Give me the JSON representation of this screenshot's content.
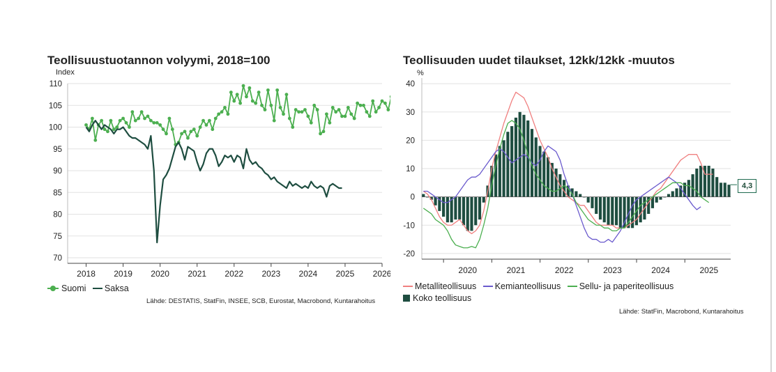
{
  "left": {
    "title": "Teollisuustuotannon volyymi, 2018=100",
    "y_unit": "Index",
    "legend": [
      {
        "label": "Suomi",
        "color": "#4caf50"
      },
      {
        "label": "Saksa",
        "color": "#1e4d40"
      }
    ],
    "source": "Lähde: DESTATIS, StatFin, INSEE, SCB, Eurostat, Macrobond, Kuntarahoitus"
  },
  "right": {
    "title": "Teollisuuden uudet tilaukset, 12kk/12kk -muutos",
    "y_unit": "%",
    "callout": "4,3",
    "legend": [
      {
        "label": "Metalliteollisuus",
        "color": "#f08080",
        "kind": "line"
      },
      {
        "label": "Kemianteollisuus",
        "color": "#6a5acd",
        "kind": "line"
      },
      {
        "label": "Sellu- ja paperiteollisuus",
        "color": "#4caf50",
        "kind": "line"
      },
      {
        "label": "Koko teollisuus",
        "color": "#1e4d40",
        "kind": "bar"
      }
    ],
    "source": "Lähde: StatFin, Macrobond, Kuntarahoitus"
  },
  "chart_data": [
    {
      "type": "line",
      "title": "Teollisuustuotannon volyymi, 2018=100",
      "ylabel": "Index",
      "ylim": [
        70,
        110
      ],
      "yticks": [
        70,
        75,
        80,
        85,
        90,
        95,
        100,
        105,
        110
      ],
      "xlim": [
        2017.5,
        2026
      ],
      "xticks": [
        "2018",
        "2019",
        "2020",
        "2021",
        "2022",
        "2023",
        "2024",
        "2025",
        "2026"
      ],
      "grid": true,
      "legend_position": "bottom-left",
      "series": [
        {
          "name": "Suomi",
          "color": "#4caf50",
          "markers": true,
          "start": 2018.0,
          "step": 0.08333,
          "values": [
            100.5,
            99.5,
            102.0,
            97.0,
            100.5,
            101.5,
            99.5,
            99.0,
            101.5,
            99.5,
            100.0,
            101.5,
            102.0,
            101.0,
            100.0,
            103.5,
            101.5,
            102.0,
            103.5,
            102.0,
            102.5,
            101.5,
            101.0,
            101.0,
            100.5,
            99.5,
            98.5,
            102.0,
            99.5,
            96.0,
            96.5,
            98.5,
            99.0,
            97.5,
            99.0,
            99.5,
            98.0,
            100.0,
            101.5,
            100.5,
            101.5,
            99.5,
            102.0,
            103.0,
            103.5,
            104.5,
            103.0,
            108.0,
            106.0,
            107.5,
            105.5,
            109.5,
            107.0,
            109.0,
            106.0,
            105.5,
            108.0,
            105.0,
            104.0,
            108.5,
            105.0,
            101.5,
            108.5,
            104.5,
            103.0,
            107.5,
            102.0,
            100.0,
            104.0,
            103.5,
            103.5,
            104.0,
            102.5,
            101.0,
            105.0,
            104.0,
            98.5,
            99.0,
            103.0,
            101.0,
            104.5,
            103.5,
            104.0,
            102.5,
            102.5,
            104.5,
            103.0,
            102.0,
            105.5,
            105.0,
            105.0,
            103.5,
            102.5,
            106.0,
            103.5,
            104.5,
            106.0,
            105.5,
            104.0,
            107.0
          ]
        },
        {
          "name": "Saksa",
          "color": "#1e4d40",
          "markers": false,
          "start": 2018.0,
          "step": 0.08333,
          "values": [
            100.0,
            99.0,
            100.5,
            101.5,
            100.5,
            99.5,
            100.5,
            100.0,
            99.5,
            98.5,
            99.5,
            99.5,
            100.0,
            99.0,
            98.0,
            97.5,
            97.5,
            97.0,
            96.5,
            96.0,
            95.0,
            98.0,
            90.0,
            73.5,
            82.0,
            88.0,
            89.0,
            90.5,
            93.0,
            95.5,
            96.5,
            95.0,
            92.5,
            95.5,
            95.0,
            94.5,
            92.0,
            90.0,
            91.5,
            94.0,
            95.0,
            95.0,
            93.5,
            91.0,
            92.0,
            93.5,
            93.0,
            93.5,
            92.0,
            93.5,
            93.0,
            90.5,
            95.0,
            92.5,
            91.5,
            92.0,
            91.0,
            90.5,
            89.5,
            89.0,
            88.0,
            88.5,
            87.5,
            87.0,
            86.5,
            86.0,
            87.5,
            86.5,
            87.0,
            86.5,
            86.0,
            86.5,
            86.0,
            87.5,
            86.5,
            86.0,
            86.5,
            86.0,
            84.0,
            86.5,
            87.0,
            86.5,
            86.0,
            86.0
          ]
        }
      ]
    },
    {
      "type": "bar",
      "title": "Teollisuuden uudet tilaukset, 12kk/12kk -muutos",
      "ylabel": "%",
      "ylim": [
        -22,
        42
      ],
      "yticks": [
        -20,
        -10,
        0,
        10,
        20,
        30,
        40
      ],
      "xlim": [
        2019.55,
        2025.95
      ],
      "xticks": [
        "2020",
        "2021",
        "2022",
        "2023",
        "2024",
        "2025"
      ],
      "grid": true,
      "legend_position": "bottom",
      "annotations": [
        {
          "text": "4,3",
          "x": 2025.9,
          "y": 4.3
        }
      ],
      "series": [
        {
          "name": "Koko teollisuus",
          "kind": "bar",
          "color": "#1e4d40",
          "start": 2019.583,
          "step": 0.0833,
          "values": [
            1,
            0,
            -1,
            -3,
            -5,
            -7,
            -9,
            -9,
            -8,
            -8,
            -10,
            -12,
            -12,
            -10,
            -8,
            -2,
            4,
            11,
            15,
            18,
            20,
            23,
            25,
            28,
            30,
            29,
            27,
            24,
            21,
            18,
            16,
            14,
            12,
            10,
            8,
            6,
            4,
            3,
            2,
            1,
            0,
            -2,
            -4,
            -6,
            -8,
            -9,
            -10,
            -10,
            -10,
            -11,
            -11,
            -11,
            -11,
            -10,
            -9,
            -8,
            -6,
            -4,
            -2,
            -1,
            0,
            1,
            2,
            3,
            4,
            5,
            6,
            8,
            10,
            11,
            11,
            11,
            10,
            7,
            5,
            5,
            4.3
          ]
        },
        {
          "name": "Metalliteollisuus",
          "kind": "line",
          "color": "#f08080",
          "start": 2019.583,
          "step": 0.0833,
          "values": [
            2,
            1,
            -1,
            -4,
            -7,
            -9,
            -10,
            -10,
            -9,
            -8,
            -10,
            -12,
            -13,
            -12,
            -10,
            -5,
            2,
            10,
            16,
            21,
            26,
            30,
            34,
            37,
            36,
            35,
            32,
            28,
            24,
            20,
            17,
            14,
            10,
            7,
            4,
            2,
            0,
            -1,
            -2,
            -3,
            -3,
            -5,
            -7,
            -9,
            -10,
            -10,
            -10,
            -10,
            -11,
            -11,
            -11,
            -10,
            -9,
            -8,
            -6,
            -4,
            -2,
            0,
            2,
            3,
            5,
            7,
            9,
            11,
            13,
            14,
            15,
            15,
            15,
            12,
            8,
            8,
            8
          ]
        },
        {
          "name": "Kemianteollisuus",
          "kind": "line",
          "color": "#6a5acd",
          "start": 2019.583,
          "step": 0.0833,
          "values": [
            2,
            2,
            1,
            0,
            -1,
            -2,
            -2,
            -1,
            0,
            2,
            4,
            6,
            7,
            7,
            8,
            10,
            12,
            14,
            16,
            17,
            16,
            14,
            12,
            13,
            14,
            15,
            14,
            12,
            11,
            13,
            16,
            18,
            17,
            16,
            13,
            8,
            4,
            1,
            -3,
            -7,
            -11,
            -14,
            -15,
            -15,
            -16,
            -16,
            -15,
            -16,
            -14,
            -12,
            -9,
            -6,
            -3,
            -1,
            0,
            1,
            2,
            3,
            4,
            5,
            6,
            7,
            6,
            5,
            3,
            1,
            -1,
            -3,
            -4.5,
            -3.5
          ]
        },
        {
          "name": "Sellu- ja paperiteollisuus",
          "kind": "line",
          "color": "#4caf50",
          "start": 2019.583,
          "step": 0.0833,
          "values": [
            -4,
            -5,
            -6,
            -8,
            -9,
            -10,
            -12,
            -15,
            -17,
            -17.5,
            -18,
            -18,
            -17.5,
            -18,
            -15,
            -10,
            -4,
            4,
            11,
            17,
            22,
            26,
            27,
            26,
            24,
            20,
            15,
            11,
            8,
            6,
            4,
            3,
            2,
            2,
            3,
            4,
            3,
            1,
            -2,
            -4,
            -6,
            -8,
            -9,
            -10,
            -10,
            -11,
            -11,
            -12,
            -12,
            -11,
            -11,
            -9,
            -7,
            -5,
            -3,
            -2,
            -1,
            0,
            1,
            2,
            3,
            4,
            5,
            5,
            5,
            4,
            4,
            3,
            2,
            0,
            -1,
            -2
          ]
        }
      ]
    }
  ]
}
